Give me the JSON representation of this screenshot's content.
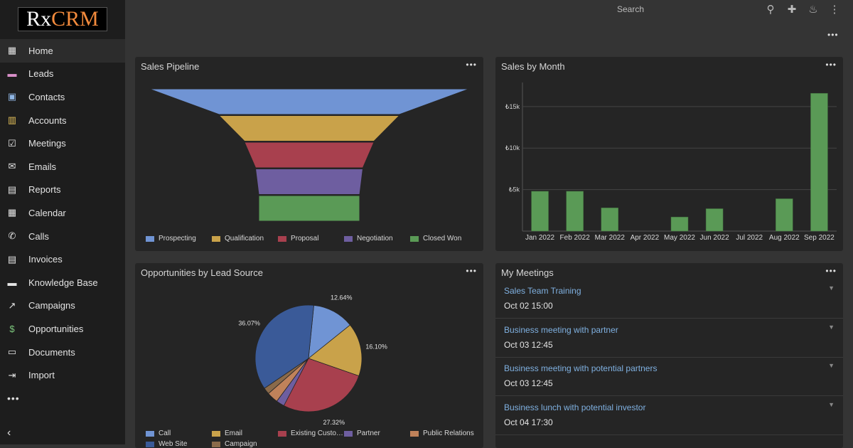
{
  "app": {
    "logo_part1": "Rx",
    "logo_part2": "CRM"
  },
  "sidebar": {
    "items": [
      {
        "label": "Home",
        "icon": "▦",
        "color": "#e4e4e4"
      },
      {
        "label": "Leads",
        "icon": "▬",
        "color": "#d98fc9"
      },
      {
        "label": "Contacts",
        "icon": "▣",
        "color": "#8fb6e4"
      },
      {
        "label": "Accounts",
        "icon": "▥",
        "color": "#e4c05a"
      },
      {
        "label": "Meetings",
        "icon": "☑",
        "color": "#e4e4e4"
      },
      {
        "label": "Emails",
        "icon": "✉",
        "color": "#e4e4e4"
      },
      {
        "label": "Reports",
        "icon": "▤",
        "color": "#e4e4e4"
      },
      {
        "label": "Calendar",
        "icon": "▦",
        "color": "#e4e4e4"
      },
      {
        "label": "Calls",
        "icon": "✆",
        "color": "#e4e4e4"
      },
      {
        "label": "Invoices",
        "icon": "▤",
        "color": "#e4e4e4"
      },
      {
        "label": "Knowledge Base",
        "icon": "▬",
        "color": "#e4e4e4"
      },
      {
        "label": "Campaigns",
        "icon": "↗",
        "color": "#e4e4e4"
      },
      {
        "label": "Opportunities",
        "icon": "$",
        "color": "#7ec97e"
      },
      {
        "label": "Documents",
        "icon": "▭",
        "color": "#e4e4e4"
      },
      {
        "label": "Import",
        "icon": "⇥",
        "color": "#e4e4e4"
      }
    ],
    "more": "•••",
    "collapse": "‹"
  },
  "topbar": {
    "search_placeholder": "Search",
    "icons": [
      "search-icon",
      "plus-icon",
      "bell-icon",
      "kebab-icon"
    ]
  },
  "dashboard": {
    "more": "•••"
  },
  "panels": {
    "pipeline": {
      "title": "Sales Pipeline",
      "more": "•••"
    },
    "sales_by_month": {
      "title": "Sales by Month",
      "more": "•••"
    },
    "lead_source": {
      "title": "Opportunities by Lead Source",
      "more": "•••"
    },
    "meetings": {
      "title": "My Meetings",
      "more": "•••"
    }
  },
  "chart_data": [
    {
      "type": "funnel",
      "title": "Sales Pipeline",
      "categories": [
        "Prospecting",
        "Qualification",
        "Proposal",
        "Negotiation",
        "Closed Won"
      ],
      "values": [
        100,
        56,
        40,
        33,
        31
      ],
      "colors": [
        "#7094d4",
        "#c9a24a",
        "#a8404e",
        "#6e5ea0",
        "#5a9a56"
      ],
      "legend": "bottom"
    },
    {
      "type": "bar",
      "title": "Sales by Month",
      "categories": [
        "Jan 2022",
        "Feb 2022",
        "Mar 2022",
        "Apr 2022",
        "May 2022",
        "Jun 2022",
        "Jul 2022",
        "Aug 2022",
        "Sep 2022"
      ],
      "values": [
        4800,
        4800,
        2800,
        0,
        1700,
        2700,
        0,
        3900,
        16600
      ],
      "yticks": [
        5000,
        10000,
        15000
      ],
      "ytick_labels": [
        "₺5k",
        "₺10k",
        "₺15k"
      ],
      "ylim": [
        0,
        17900
      ],
      "color": "#5a9a56",
      "grid": true
    },
    {
      "type": "pie",
      "title": "Opportunities by Lead Source",
      "series": [
        {
          "name": "Call",
          "value": 12.64,
          "color": "#7094d4",
          "label": "12.64%"
        },
        {
          "name": "Email",
          "value": 16.1,
          "color": "#c9a24a",
          "label": "16.10%"
        },
        {
          "name": "Existing Custo…",
          "value": 27.32,
          "color": "#a8404e",
          "label": "27.32%"
        },
        {
          "name": "Partner",
          "value": 2.5,
          "color": "#6e5ea0",
          "label": ""
        },
        {
          "name": "Public Relations",
          "value": 3.4,
          "color": "#c0825a",
          "label": ""
        },
        {
          "name": "Campaign",
          "value": 1.97,
          "color": "#8a6a4a",
          "label": ""
        },
        {
          "name": "Web Site",
          "value": 36.07,
          "color": "#3a5a98",
          "label": "36.07%"
        }
      ],
      "legend": "bottom"
    }
  ],
  "meetings": [
    {
      "name": "Sales Team Training",
      "time": "Oct 02 15:00"
    },
    {
      "name": "Business meeting with partner",
      "time": "Oct 03 12:45"
    },
    {
      "name": "Business meeting with potential partners",
      "time": "Oct 03 12:45"
    },
    {
      "name": "Business lunch with potential investor",
      "time": "Oct 04 17:30"
    }
  ]
}
